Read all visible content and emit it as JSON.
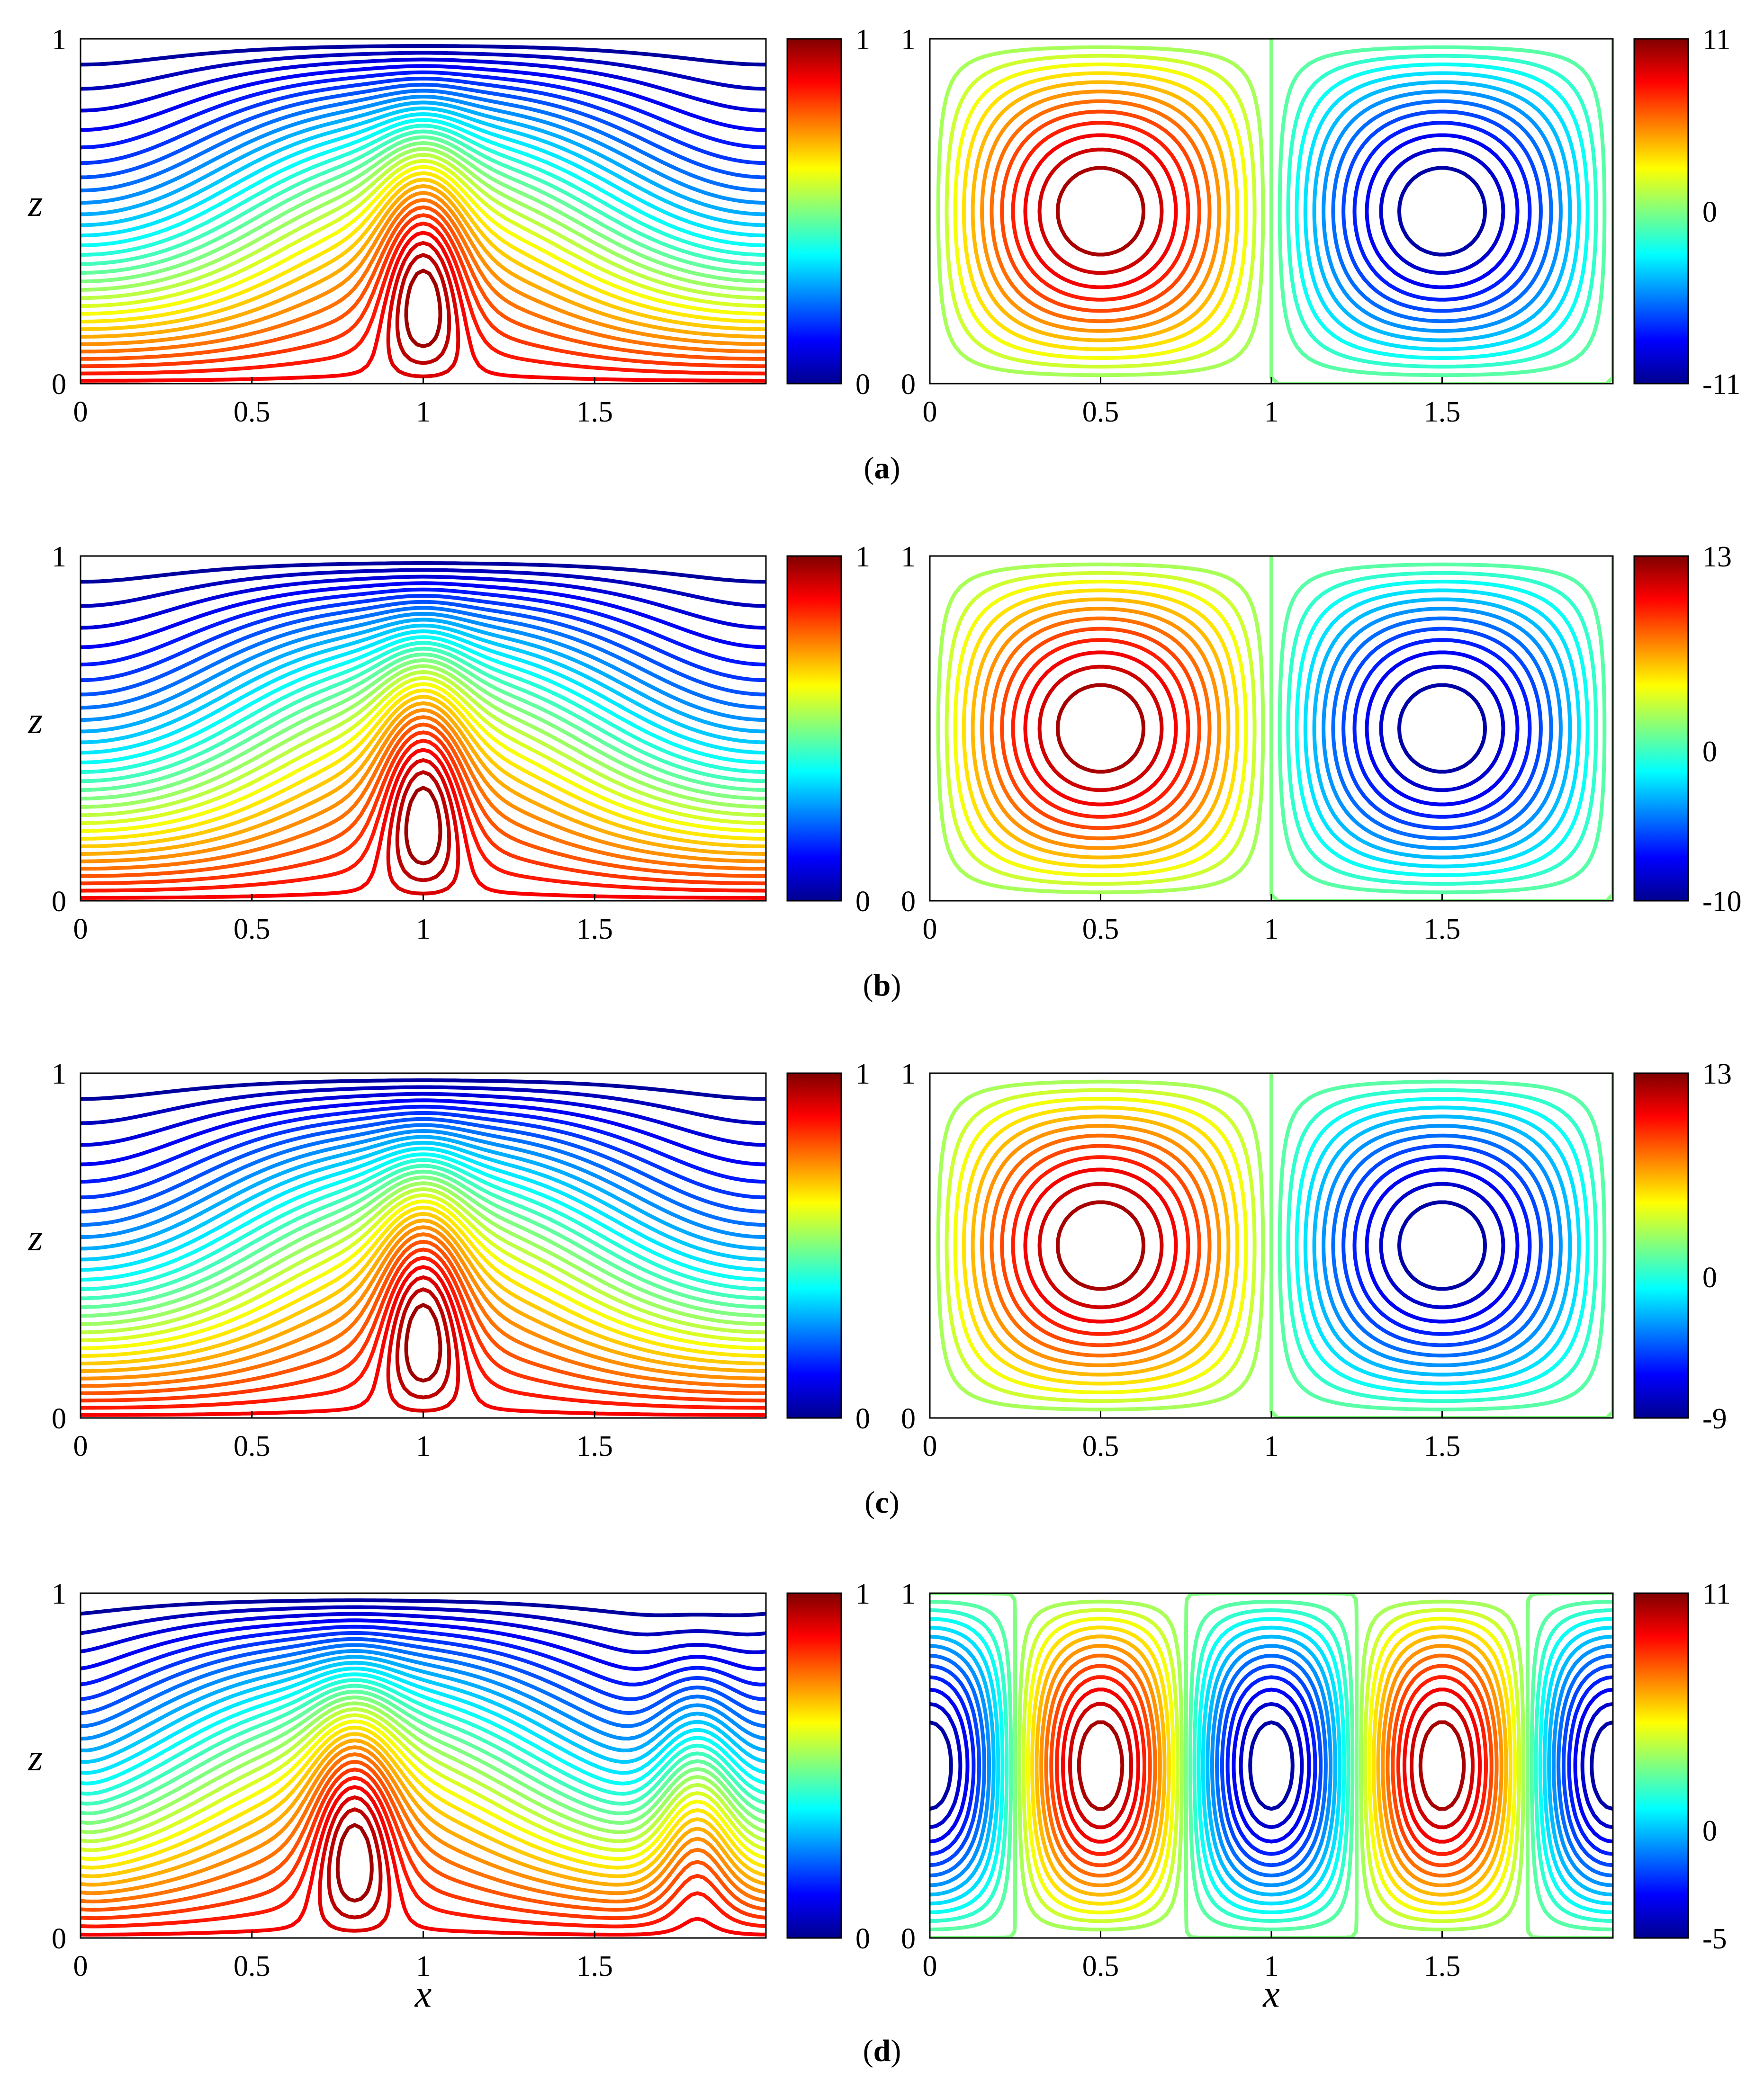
{
  "panels": [
    {
      "label_open": "(",
      "label": "a",
      "label_close": ")",
      "chart_data": [
        {
          "type": "contour",
          "field": "temperature",
          "xlim": [
            0,
            2
          ],
          "ylim": [
            0,
            1
          ],
          "x_ticks": [
            "0",
            "0.5",
            "1",
            "1.5"
          ],
          "y_ticks": [
            "0",
            "1"
          ],
          "ylabel": "z",
          "xlabel": "",
          "colorbar": {
            "min": 0,
            "max": 1,
            "labels": [
              "1",
              "0"
            ]
          },
          "plumes": [
            1.0
          ]
        },
        {
          "type": "contour",
          "field": "streamfunction",
          "xlim": [
            0,
            2
          ],
          "ylim": [
            0,
            1
          ],
          "x_ticks": [
            "0",
            "0.5",
            "1",
            "1.5"
          ],
          "y_ticks": [
            "0",
            "1"
          ],
          "xlabel": "",
          "colorbar": {
            "min": -11,
            "max": 11,
            "labels": [
              "11",
              "0",
              "-11"
            ]
          },
          "cells": [
            {
              "cx": 0.5,
              "cz": 0.5,
              "sign": 1
            },
            {
              "cx": 1.5,
              "cz": 0.5,
              "sign": -1
            }
          ]
        }
      ]
    },
    {
      "label_open": "(",
      "label": "b",
      "label_close": ")",
      "chart_data": [
        {
          "type": "contour",
          "field": "temperature",
          "xlim": [
            0,
            2
          ],
          "ylim": [
            0,
            1
          ],
          "x_ticks": [
            "0",
            "0.5",
            "1",
            "1.5"
          ],
          "y_ticks": [
            "0",
            "1"
          ],
          "ylabel": "z",
          "xlabel": "",
          "colorbar": {
            "min": 0,
            "max": 1,
            "labels": [
              "1",
              "0"
            ]
          },
          "plumes": [
            1.0
          ]
        },
        {
          "type": "contour",
          "field": "streamfunction",
          "xlim": [
            0,
            2
          ],
          "ylim": [
            0,
            1
          ],
          "x_ticks": [
            "0",
            "0.5",
            "1",
            "1.5"
          ],
          "y_ticks": [
            "0",
            "1"
          ],
          "xlabel": "",
          "colorbar": {
            "min": -10,
            "max": 13,
            "labels": [
              "13",
              "0",
              "-10"
            ]
          },
          "cells": [
            {
              "cx": 0.5,
              "cz": 0.55,
              "sign": 1
            },
            {
              "cx": 1.5,
              "cz": 0.45,
              "sign": -1
            }
          ]
        }
      ]
    },
    {
      "label_open": "(",
      "label": "c",
      "label_close": ")",
      "chart_data": [
        {
          "type": "contour",
          "field": "temperature",
          "xlim": [
            0,
            2
          ],
          "ylim": [
            0,
            1
          ],
          "x_ticks": [
            "0",
            "0.5",
            "1",
            "1.5"
          ],
          "y_ticks": [
            "0",
            "1"
          ],
          "ylabel": "z",
          "xlabel": "",
          "colorbar": {
            "min": 0,
            "max": 1,
            "labels": [
              "1",
              "0"
            ]
          },
          "plumes": [
            1.0
          ]
        },
        {
          "type": "contour",
          "field": "streamfunction",
          "xlim": [
            0,
            2
          ],
          "ylim": [
            0,
            1
          ],
          "x_ticks": [
            "0",
            "0.5",
            "1",
            "1.5"
          ],
          "y_ticks": [
            "0",
            "1"
          ],
          "xlabel": "",
          "colorbar": {
            "min": -9,
            "max": 13,
            "labels": [
              "13",
              "0",
              "-9"
            ]
          },
          "cells": [
            {
              "cx": 0.5,
              "cz": 0.55,
              "sign": 1
            },
            {
              "cx": 1.5,
              "cz": 0.5,
              "sign": -1
            }
          ]
        }
      ]
    },
    {
      "label_open": "(",
      "label": "d",
      "label_close": ")",
      "chart_data": [
        {
          "type": "contour",
          "field": "temperature",
          "xlim": [
            0,
            2
          ],
          "ylim": [
            0,
            1
          ],
          "x_ticks": [
            "0",
            "0.5",
            "1",
            "1.5"
          ],
          "y_ticks": [
            "0",
            "1"
          ],
          "ylabel": "z",
          "xlabel": "x",
          "colorbar": {
            "min": 0,
            "max": 1,
            "labels": [
              "1",
              "0"
            ]
          },
          "plumes": [
            0.8,
            1.8
          ]
        },
        {
          "type": "contour",
          "field": "streamfunction",
          "xlim": [
            0,
            2
          ],
          "ylim": [
            0,
            1
          ],
          "x_ticks": [
            "0",
            "0.5",
            "1",
            "1.5"
          ],
          "y_ticks": [
            "0",
            "1"
          ],
          "xlabel": "x",
          "colorbar": {
            "min": -5,
            "max": 11,
            "labels": [
              "11",
              "0",
              "-5"
            ]
          },
          "cells": [
            {
              "cx": 0.0,
              "cz": 0.5,
              "sign": -1
            },
            {
              "cx": 0.5,
              "cz": 0.5,
              "sign": 1
            },
            {
              "cx": 1.0,
              "cz": 0.5,
              "sign": -1
            },
            {
              "cx": 1.5,
              "cz": 0.5,
              "sign": 1
            },
            {
              "cx": 2.0,
              "cz": 0.5,
              "sign": -1
            }
          ]
        }
      ]
    }
  ]
}
